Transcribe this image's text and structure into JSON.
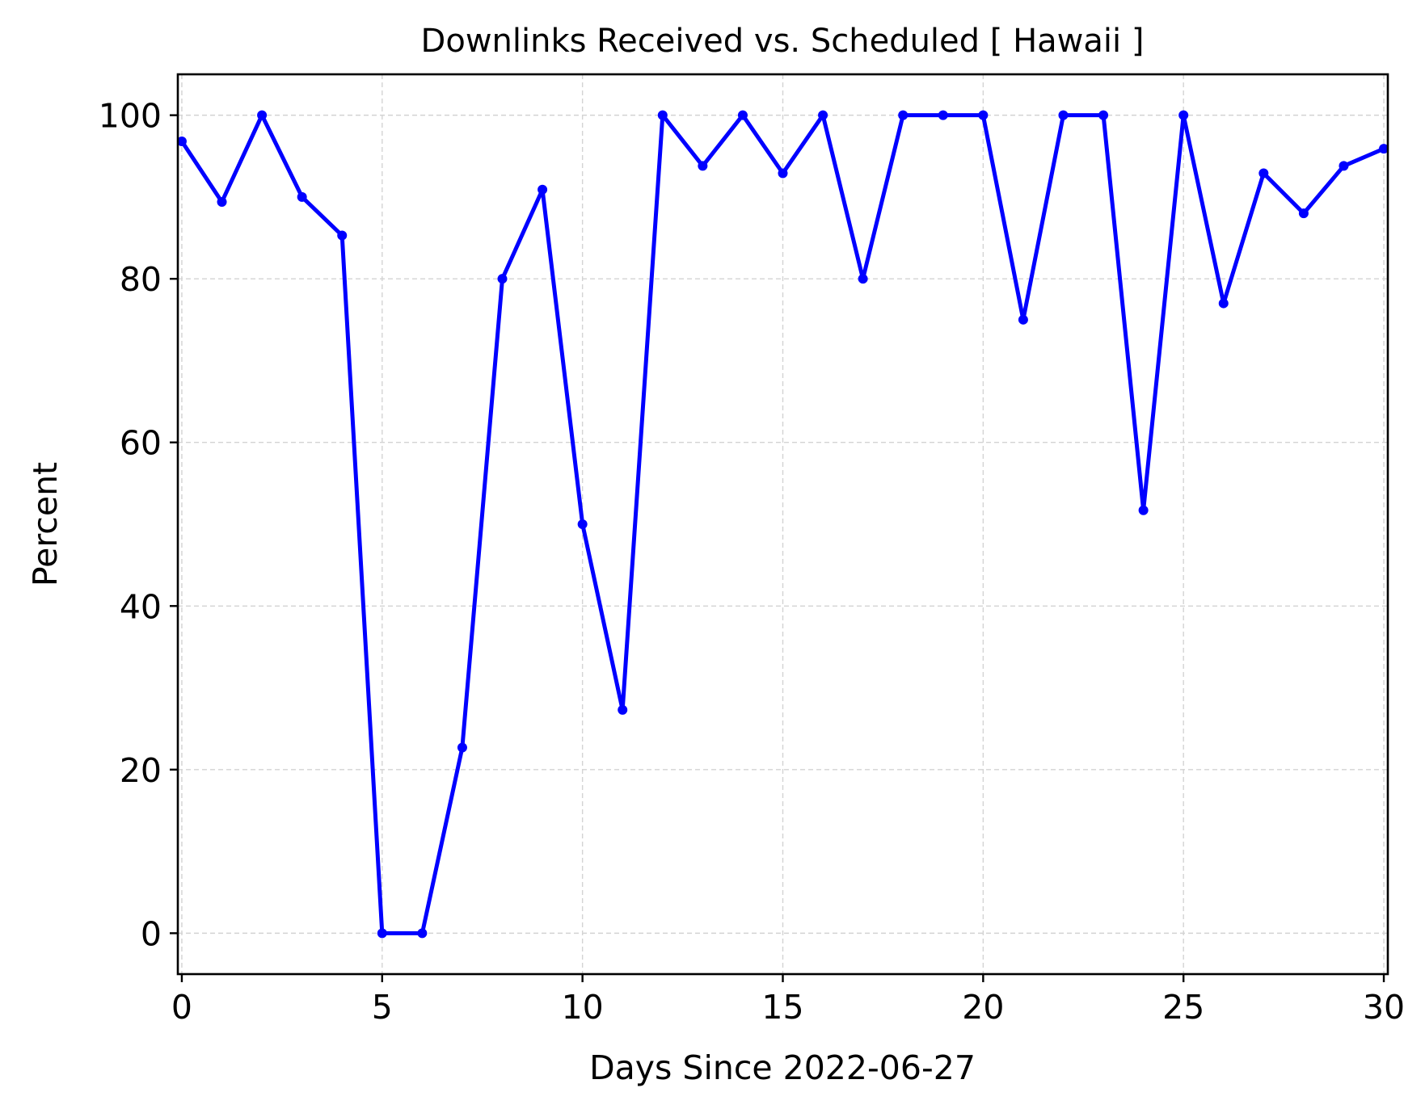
{
  "chart_data": {
    "type": "line",
    "title": "Downlinks Received vs. Scheduled [ Hawaii ]",
    "xlabel": "Days Since 2022-06-27",
    "ylabel": "Percent",
    "xlim": [
      -0.1,
      30.1
    ],
    "ylim": [
      -5,
      105
    ],
    "xticks": [
      0,
      5,
      10,
      15,
      20,
      25,
      30
    ],
    "yticks": [
      0,
      20,
      40,
      60,
      80,
      100
    ],
    "xtick_labels": [
      "0",
      "5",
      "10",
      "15",
      "20",
      "25",
      "30"
    ],
    "ytick_labels": [
      "0",
      "20",
      "40",
      "60",
      "80",
      "100"
    ],
    "grid": true,
    "legend": "none",
    "series": [
      {
        "color": "#0000ff",
        "marker": "circle",
        "x": [
          0,
          1,
          2,
          3,
          4,
          5,
          6,
          7,
          8,
          9,
          10,
          11,
          12,
          13,
          14,
          15,
          16,
          17,
          18,
          19,
          20,
          21,
          22,
          23,
          24,
          25,
          26,
          27,
          28,
          29,
          30
        ],
        "values": [
          96.8,
          89.4,
          100,
          90,
          85.3,
          0,
          0,
          22.7,
          80,
          90.9,
          50,
          27.3,
          100,
          93.8,
          100,
          92.9,
          100,
          80,
          100,
          100,
          100,
          75,
          100,
          100,
          51.7,
          100,
          77,
          92.9,
          88,
          93.8,
          95.9
        ]
      }
    ]
  }
}
